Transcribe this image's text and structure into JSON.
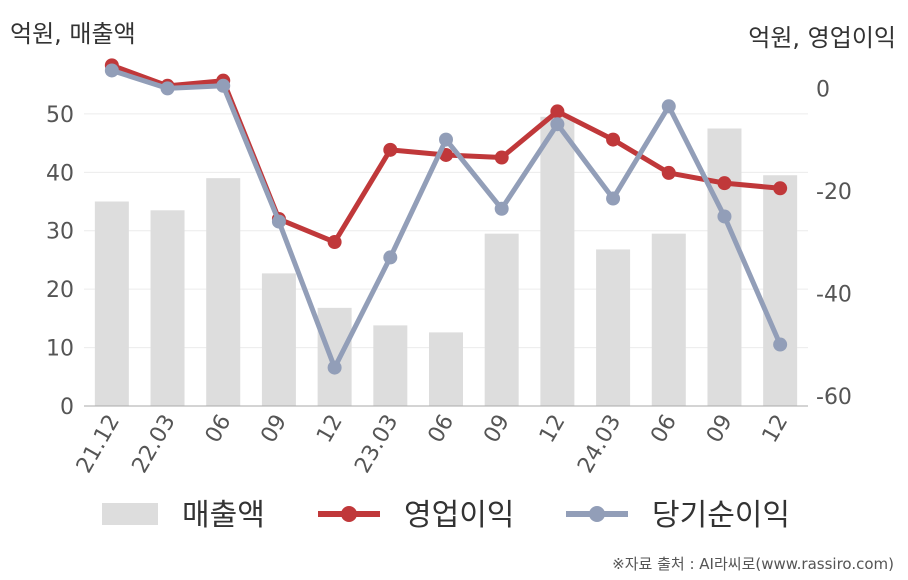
{
  "chart_data": {
    "type": "bar+line",
    "title": "",
    "categories": [
      "21.12",
      "22.03",
      "06",
      "09",
      "12",
      "23.03",
      "06",
      "09",
      "12",
      "24.03",
      "06",
      "09",
      "12"
    ],
    "y_left": {
      "label": "억원, 매출액",
      "ticks": [
        0,
        10,
        20,
        30,
        40,
        50
      ],
      "range": [
        0,
        57
      ]
    },
    "y_right": {
      "label": "억원, 영업이익",
      "ticks": [
        0,
        -20,
        -40,
        -60
      ],
      "range": [
        -62,
        3
      ]
    },
    "series": [
      {
        "name": "매출액",
        "type": "bar",
        "axis": "left",
        "color": "#dddddd",
        "values": [
          35.0,
          33.5,
          39.0,
          22.7,
          16.8,
          13.8,
          12.6,
          29.5,
          49.5,
          26.8,
          29.5,
          47.5,
          39.5
        ]
      },
      {
        "name": "영업이익",
        "type": "line",
        "axis": "right",
        "color": "#c0383a",
        "values": [
          4.5,
          0.5,
          1.5,
          -25.5,
          -30.0,
          -12.0,
          -13.0,
          -13.5,
          -4.5,
          -10.0,
          -16.5,
          -18.5,
          -19.5
        ]
      },
      {
        "name": "당기순이익",
        "type": "line",
        "axis": "right",
        "color": "#929eb8",
        "values": [
          3.5,
          0.0,
          0.5,
          -26.0,
          -54.5,
          -33.0,
          -10.0,
          -23.5,
          -7.0,
          -21.5,
          -3.5,
          -25.0,
          -50.0
        ]
      }
    ],
    "grid": true,
    "legend": "bottom"
  },
  "source_text": "※자료 출처 : AI라씨로(www.rassiro.com)"
}
